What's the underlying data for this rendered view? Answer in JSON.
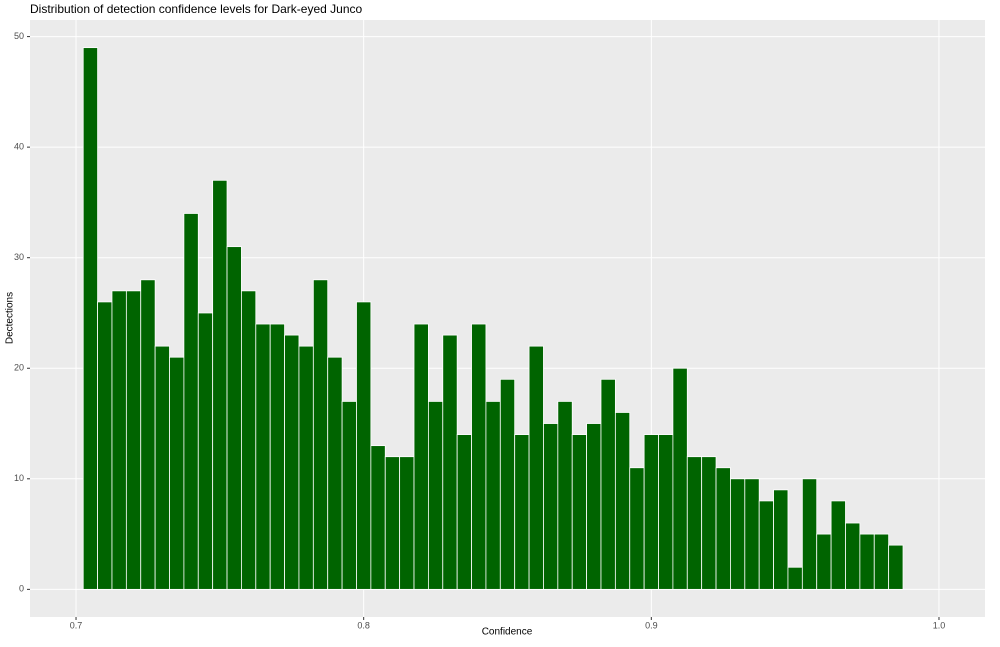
{
  "chart_data": {
    "type": "histogram",
    "title": "Distribution of detection confidence levels for Dark-eyed Junco",
    "x_label": "Confidence",
    "y_label": "Dectections",
    "color": "#006400",
    "bins": [
      0.7025,
      0.7075,
      0.7125,
      0.7175,
      0.7225,
      0.7275,
      0.7325,
      0.7375,
      0.7425,
      0.7475,
      0.7525,
      0.7575,
      0.7625,
      0.7675,
      0.7725,
      0.7775,
      0.7825,
      0.7875,
      0.7925,
      0.7975,
      0.8025,
      0.8075,
      0.8125,
      0.8175,
      0.8225,
      0.8275,
      0.8325,
      0.8375,
      0.8425,
      0.8475,
      0.8525,
      0.8575,
      0.8625,
      0.8675,
      0.8725,
      0.8775,
      0.8825,
      0.8875,
      0.8925,
      0.8975,
      0.9025,
      0.9075,
      0.9125,
      0.9175,
      0.9225,
      0.9275,
      0.9325,
      0.9375,
      0.9425,
      0.9475,
      0.9525,
      0.9575,
      0.9625,
      0.9675,
      0.9725,
      0.9775,
      0.9825,
      0.9875
    ],
    "values": [
      49,
      26,
      27,
      27,
      28,
      22,
      21,
      34,
      25,
      37,
      31,
      27,
      24,
      24,
      23,
      22,
      28,
      21,
      17,
      26,
      13,
      12,
      12,
      24,
      17,
      23,
      14,
      24,
      17,
      19,
      14,
      22,
      15,
      17,
      14,
      15,
      19,
      16,
      11,
      14,
      14,
      20,
      12,
      12,
      11,
      10,
      10,
      8,
      9,
      2,
      10,
      5,
      8,
      6,
      5,
      5,
      4
    ],
    "xlim": [
      0.684,
      1.016
    ],
    "ylim": [
      -2.5,
      51.5
    ],
    "xticks": [
      0.7,
      0.8,
      0.9,
      {
        "value": 1,
        "label": "1.0"
      }
    ],
    "yticks": [
      0,
      10,
      20,
      30,
      40,
      50
    ],
    "grid": true
  }
}
